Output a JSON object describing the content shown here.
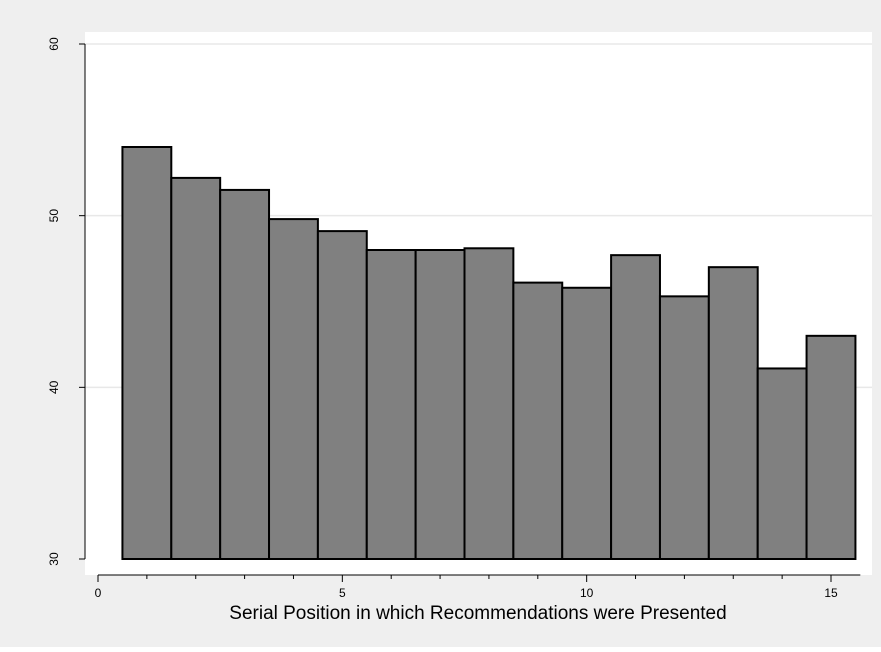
{
  "colors": {
    "outer_background": "#efefef",
    "plot_background": "#ffffff",
    "bar_fill": "#808080",
    "bar_stroke": "#000000",
    "gridline": "#e8e8e8",
    "axis": "#000000",
    "text": "#000000"
  },
  "chart_data": {
    "type": "bar",
    "title": "",
    "xlabel": "Serial Position in which Recommendations were Presented",
    "ylabel": "",
    "x": [
      1,
      2,
      3,
      4,
      5,
      6,
      7,
      8,
      9,
      10,
      11,
      12,
      13,
      14,
      15
    ],
    "values": [
      54.0,
      52.2,
      51.5,
      49.8,
      49.1,
      48.0,
      48.0,
      48.1,
      46.1,
      45.8,
      47.7,
      45.3,
      47.0,
      41.1,
      43.0
    ],
    "xlim": [
      0,
      15.6
    ],
    "ylim": [
      30,
      60
    ],
    "bar_base": 30,
    "xticks": [
      0,
      5,
      10,
      15
    ],
    "xticks_minor": [
      1,
      2,
      3,
      4,
      6,
      7,
      8,
      9,
      11,
      12,
      13,
      14
    ],
    "yticks": [
      30,
      40,
      50,
      60
    ],
    "ytick_label_rotation": "vertical",
    "grid": true,
    "legend": "none"
  }
}
